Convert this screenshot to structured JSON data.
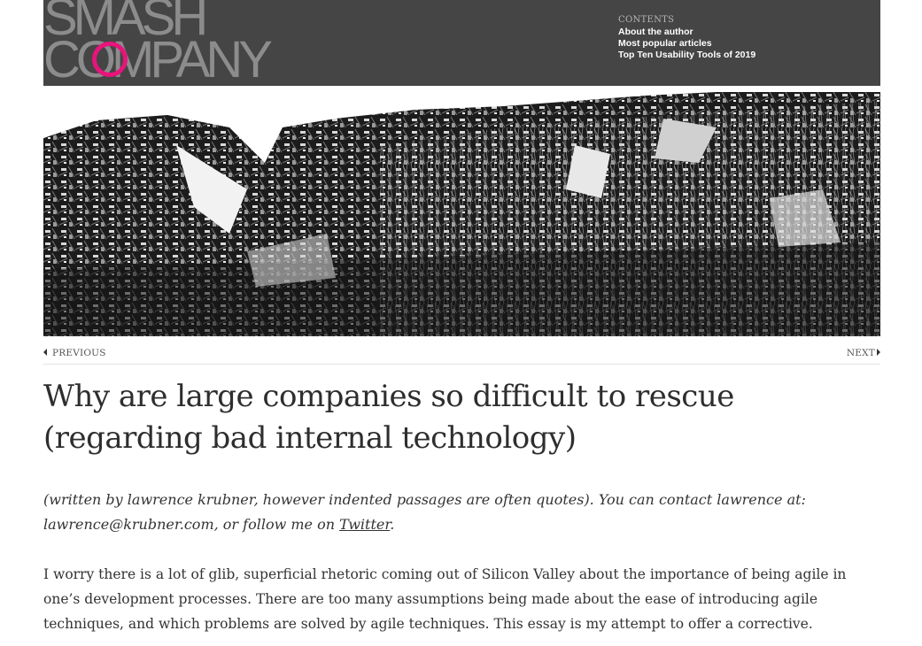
{
  "header": {
    "logo_line1": "SMASH",
    "logo_line2": "COMPANY",
    "contents_label": "CONTENTS",
    "links": [
      "About the author",
      "Most popular articles",
      "Top Ten Usability Tools of 2019"
    ],
    "accent_color": "#e6147b"
  },
  "hero": {
    "alt": "collapsed building rubble"
  },
  "pager": {
    "prev_label": "PREVIOUS",
    "next_label": "NEXT"
  },
  "article": {
    "title": "Why are large companies so difficult to rescue (regarding bad internal technology)",
    "byline_text": "(written by lawrence krubner, however indented passages are often quotes). You can contact lawrence at: lawrence@krubner.com, or follow me on ",
    "byline_link": "Twitter",
    "byline_end": ".",
    "paragraph1": "I worry there is a lot of glib, superficial rhetoric coming out of Silicon Valley about the importance of being agile in one’s development processes. There are too many assumptions being made about the ease of introducing agile techniques, and which problems are solved by agile techniques. This essay is my attempt to offer a corrective."
  }
}
